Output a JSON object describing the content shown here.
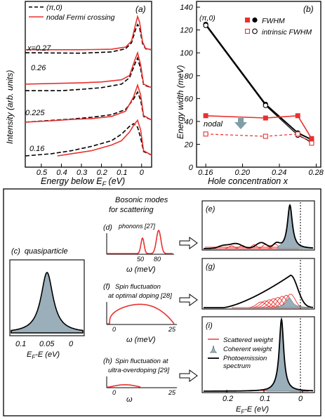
{
  "colors": {
    "red": "#e8312f",
    "black": "#000000",
    "fill": "#9aafb9",
    "fill_edge": "#3f555e",
    "arrow": "#7f9ea6"
  },
  "chart_data": [
    {
      "panel": "a",
      "type": "line",
      "panel_label": "(a)",
      "xlabel": "Energy below E",
      "xlabel_sub": "F",
      "xlabel_unit": " (eV)",
      "ylabel": "Intensity (arb. units)",
      "x_ticks": [
        "0.5",
        "0.4",
        "0.3",
        "0.2",
        "0.1",
        "0"
      ],
      "xlim": [
        0.58,
        -0.05
      ],
      "legend": [
        "(π,0)",
        "nodal Fermi crossing"
      ],
      "curve_labels": [
        "x=0.27",
        "0.26",
        "0.225",
        "0.16"
      ],
      "series": [
        {
          "label_index": 0,
          "offset": 3.0,
          "nodal": [
            [
              0.58,
              0.02
            ],
            [
              0.3,
              0.02
            ],
            [
              0.15,
              0.03
            ],
            [
              0.08,
              0.08
            ],
            [
              0.05,
              0.22
            ],
            [
              0.03,
              0.6
            ],
            [
              0.02,
              0.78
            ],
            [
              0.01,
              0.65
            ],
            [
              -0.005,
              0.2
            ],
            [
              -0.02,
              0.05
            ],
            [
              -0.05,
              0.02
            ]
          ],
          "antinodal": [
            [
              0.58,
              -0.05
            ],
            [
              0.3,
              -0.06
            ],
            [
              0.15,
              -0.03
            ],
            [
              0.08,
              0.04
            ],
            [
              0.05,
              0.18
            ],
            [
              0.03,
              0.48
            ],
            [
              0.02,
              0.6
            ],
            [
              0.01,
              0.52
            ],
            [
              -0.005,
              0.16
            ],
            [
              -0.02,
              0.04
            ],
            [
              -0.05,
              0.02
            ]
          ]
        },
        {
          "label_index": 1,
          "offset": 2.0,
          "nodal": [
            [
              0.58,
              0.1
            ],
            [
              0.4,
              0.12
            ],
            [
              0.3,
              0.13
            ],
            [
              0.2,
              0.15
            ],
            [
              0.1,
              0.2
            ],
            [
              0.06,
              0.3
            ],
            [
              0.03,
              0.7
            ],
            [
              0.02,
              0.82
            ],
            [
              0.005,
              0.55
            ],
            [
              -0.01,
              0.1
            ],
            [
              -0.05,
              0.02
            ]
          ],
          "antinodal": [
            [
              0.58,
              -0.05
            ],
            [
              0.4,
              -0.05
            ],
            [
              0.3,
              -0.02
            ],
            [
              0.2,
              0.02
            ],
            [
              0.1,
              0.1
            ],
            [
              0.06,
              0.25
            ],
            [
              0.03,
              0.6
            ],
            [
              0.02,
              0.7
            ],
            [
              0.005,
              0.45
            ],
            [
              -0.01,
              0.08
            ],
            [
              -0.05,
              0.02
            ]
          ]
        },
        {
          "label_index": 2,
          "offset": 1.0,
          "nodal": [
            [
              0.58,
              -0.03
            ],
            [
              0.45,
              0.0
            ],
            [
              0.35,
              0.03
            ],
            [
              0.25,
              0.05
            ],
            [
              0.15,
              0.1
            ],
            [
              0.08,
              0.22
            ],
            [
              0.04,
              0.55
            ],
            [
              0.02,
              0.82
            ],
            [
              0.005,
              0.6
            ],
            [
              -0.01,
              0.12
            ],
            [
              -0.05,
              0.02
            ]
          ],
          "antinodal": [
            [
              0.58,
              -0.03
            ],
            [
              0.45,
              0.01
            ],
            [
              0.35,
              0.04
            ],
            [
              0.25,
              0.08
            ],
            [
              0.15,
              0.14
            ],
            [
              0.08,
              0.26
            ],
            [
              0.04,
              0.5
            ],
            [
              0.02,
              0.66
            ],
            [
              0.005,
              0.48
            ],
            [
              -0.01,
              0.1
            ],
            [
              -0.05,
              0.02
            ]
          ]
        },
        {
          "label_index": 3,
          "offset": 0.0,
          "nodal": [
            [
              0.42,
              0.0
            ],
            [
              0.35,
              0.05
            ],
            [
              0.25,
              0.12
            ],
            [
              0.15,
              0.25
            ],
            [
              0.1,
              0.35
            ],
            [
              0.06,
              0.55
            ],
            [
              0.04,
              0.7
            ],
            [
              0.02,
              0.82
            ],
            [
              0.005,
              0.6
            ],
            [
              -0.01,
              0.12
            ],
            [
              -0.05,
              0.02
            ]
          ],
          "antinodal": [
            [
              0.58,
              0.0
            ],
            [
              0.45,
              0.05
            ],
            [
              0.35,
              0.12
            ],
            [
              0.25,
              0.22
            ],
            [
              0.15,
              0.35
            ],
            [
              0.1,
              0.5
            ],
            [
              0.06,
              0.68
            ],
            [
              0.04,
              0.74
            ],
            [
              0.02,
              0.66
            ],
            [
              0.005,
              0.42
            ],
            [
              -0.01,
              0.1
            ],
            [
              -0.05,
              0.02
            ]
          ]
        }
      ]
    },
    {
      "panel": "b",
      "type": "line",
      "panel_label": "(b)",
      "xlabel": "Hole concentration x",
      "ylabel": "Energy width (meV)",
      "xlim": [
        0.15,
        0.285
      ],
      "ylim": [
        0,
        145
      ],
      "x_ticks": [
        "0.16",
        "0.20",
        "0.24",
        "0.28"
      ],
      "y_ticks": [
        "0",
        "20",
        "40",
        "60",
        "80",
        "100",
        "120",
        "140"
      ],
      "legend": [
        "FWHM",
        "intrinsic FWHM"
      ],
      "annotations": [
        "(π,0)",
        "nodal"
      ],
      "series": [
        {
          "name": "antinodal FWHM",
          "style": "filled-circle",
          "x": [
            0.16,
            0.225,
            0.26,
            0.275
          ],
          "y": [
            125,
            55,
            30,
            24
          ]
        },
        {
          "name": "antinodal intrinsic FWHM",
          "style": "open-circle",
          "x": [
            0.16,
            0.225,
            0.26,
            0.275
          ],
          "y": [
            124,
            54,
            28,
            22
          ]
        },
        {
          "name": "nodal FWHM",
          "style": "filled-square",
          "x": [
            0.16,
            0.225,
            0.26,
            0.275
          ],
          "y": [
            45,
            43,
            45,
            25
          ]
        },
        {
          "name": "nodal intrinsic FWHM",
          "style": "open-square",
          "x": [
            0.16,
            0.225,
            0.26,
            0.275
          ],
          "y": [
            29,
            27,
            29,
            21
          ]
        }
      ]
    }
  ],
  "panel_c": {
    "label": "(c)",
    "title": "quasiparticle",
    "x_ticks": [
      "0.1",
      "0.05",
      "0"
    ],
    "xlabel": "E",
    "xlabel_sub": "F",
    "xlabel_rest": "-E (eV)"
  },
  "bosonic_header": "Bosonic modes for scattering",
  "panel_d": {
    "label": "(d)",
    "title": "phonons [27]",
    "ticks": [
      "50",
      "80"
    ],
    "xlabel": "ω (meV)"
  },
  "panel_f": {
    "label": "(f)",
    "title": "Spin fluctuation at optimal doping [28]",
    "ticks": [
      "0",
      "25"
    ],
    "xlabel": "ω (meV)"
  },
  "panel_h": {
    "label": "(h)",
    "title": "Spin fluctuation at ultra-overdoping [29]",
    "ticks": [
      "0",
      "25"
    ],
    "xlabel": "ω"
  },
  "panel_e": {
    "label": "(e)"
  },
  "panel_g": {
    "label": "(g)"
  },
  "panel_i": {
    "label": "(i)",
    "x_ticks": [
      "0.2",
      "0.1",
      "0"
    ],
    "xlabel": "E",
    "xlabel_sub": "F",
    "xlabel_rest": "-E (eV)",
    "legend": [
      "Scattered weight",
      "Coherent weight",
      "Photoemission spectrum"
    ]
  }
}
